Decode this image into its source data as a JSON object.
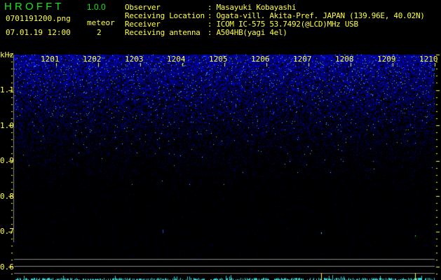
{
  "app": {
    "name": "H R O F F T",
    "version": "1.0.0"
  },
  "file": {
    "name": "0701191200.png",
    "datetime": "07.01.19 12:00"
  },
  "meteor": {
    "label": "meteor",
    "count": "2"
  },
  "info": [
    {
      "label": "Observer",
      "value": "Masayuki Kobayashi"
    },
    {
      "label": "Receiving Location",
      "value": "Ogata-vill. Akita-Pref. JAPAN (139.96E, 40.02N)"
    },
    {
      "label": "Receiver",
      "value": "ICOM IC-575 53.7492(@LCD)MHz USB"
    },
    {
      "label": "Receiving antenna",
      "value": "A504HB(yagi 4el)"
    }
  ],
  "spectrogram": {
    "y_unit": "kHz",
    "y_ticks": [
      "1.1",
      "1.0",
      "0.9",
      "0.8",
      "0.7",
      "0.6"
    ],
    "x_ticks": [
      "1201",
      "1202",
      "1203",
      "1204",
      "1205",
      "1206",
      "1207",
      "1208",
      "1209",
      "1210"
    ],
    "colors": {
      "noise": "#1a2cff",
      "strong": "#40e0ff",
      "axis": "#ffff40",
      "title": "#20e020"
    }
  }
}
